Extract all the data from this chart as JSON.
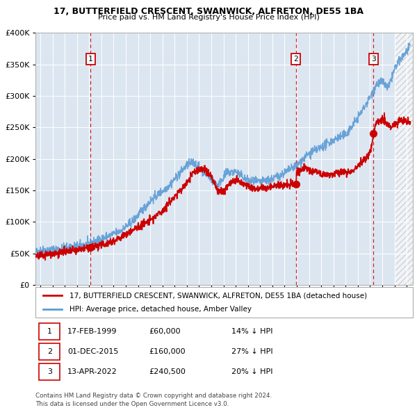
{
  "title1": "17, BUTTERFIELD CRESCENT, SWANWICK, ALFRETON, DE55 1BA",
  "title2": "Price paid vs. HM Land Registry's House Price Index (HPI)",
  "legend_line1": "17, BUTTERFIELD CRESCENT, SWANWICK, ALFRETON, DE55 1BA (detached house)",
  "legend_line2": "HPI: Average price, detached house, Amber Valley",
  "sales": [
    {
      "date_num": 1999.12,
      "price": 60000,
      "label": "1",
      "date_str": "17-FEB-1999",
      "price_str": "£60,000",
      "pct": "14% ↓ HPI"
    },
    {
      "date_num": 2015.92,
      "price": 160000,
      "label": "2",
      "date_str": "01-DEC-2015",
      "price_str": "£160,000",
      "pct": "27% ↓ HPI"
    },
    {
      "date_num": 2022.28,
      "price": 240500,
      "label": "3",
      "date_str": "13-APR-2022",
      "price_str": "£240,500",
      "pct": "20% ↓ HPI"
    }
  ],
  "footer1": "Contains HM Land Registry data © Crown copyright and database right 2024.",
  "footer2": "This data is licensed under the Open Government Licence v3.0.",
  "red_color": "#cc0000",
  "blue_color": "#5b9bd5",
  "bg_color": "#dce6f1",
  "grid_color": "#ffffff",
  "ylim": [
    0,
    400000
  ],
  "xlim_start": 1994.6,
  "xlim_end": 2025.5,
  "hatch_start": 2024.0
}
